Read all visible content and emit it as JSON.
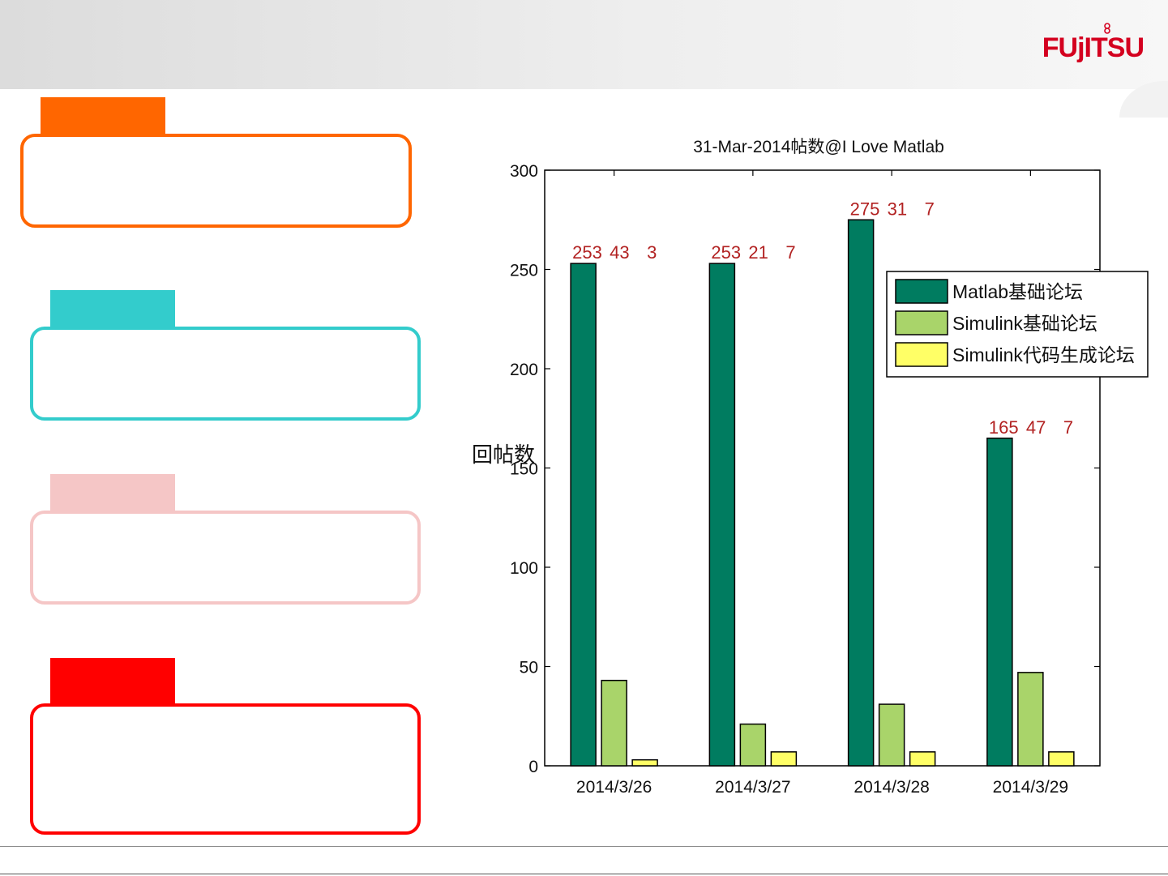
{
  "logo": {
    "text": "FUjITSU",
    "color": "#d4001f"
  },
  "panels": [
    {
      "color": "#ff6600"
    },
    {
      "color": "#33cccc"
    },
    {
      "color": "#f5c6c6"
    },
    {
      "color": "#ff0000"
    }
  ],
  "chart_data": {
    "type": "bar",
    "title": "31-Mar-2014帖数@I Love Matlab",
    "xlabel": "",
    "ylabel": "回帖数",
    "categories": [
      "2014/3/26",
      "2014/3/27",
      "2014/3/28",
      "2014/3/29"
    ],
    "series": [
      {
        "name": "Matlab基础论坛",
        "color": "#007c60",
        "values": [
          253,
          253,
          275,
          165
        ]
      },
      {
        "name": "Simulink基础论坛",
        "color": "#a9d46a",
        "values": [
          43,
          21,
          31,
          47
        ]
      },
      {
        "name": "Simulink代码生成论坛",
        "color": "#ffff66",
        "values": [
          3,
          7,
          7,
          7
        ]
      }
    ],
    "ylim": [
      0,
      300
    ],
    "yticks": [
      0,
      50,
      100,
      150,
      200,
      250,
      300
    ],
    "data_label_color": "#b22222",
    "grid": false,
    "legend_position": "top-right"
  }
}
